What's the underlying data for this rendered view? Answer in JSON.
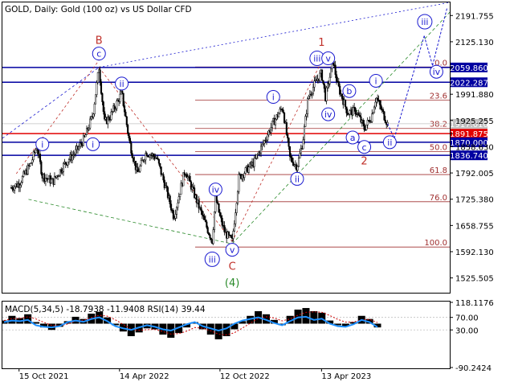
{
  "header": {
    "title": "GOLD, Daily:  Gold (100 oz) vs US Dollar CFD"
  },
  "colors": {
    "background": "#ffffff",
    "axis": "#000000",
    "grid": "#c0c0c0",
    "candle": "#000000",
    "blue_level": "#0000a0",
    "red_level": "#e00000",
    "fib_line": "#a03030",
    "wave_blue": "#1a1ad0",
    "wave_red": "#c0302a",
    "wave_green": "#2a8a2a",
    "macd_hist": "#000000",
    "macd_signal": "#d00000",
    "rsi_line": "#1e90ff",
    "current_label_bg": "#c0c0c0"
  },
  "chart_data": [
    {
      "type": "candlestick",
      "symbol": "GOLD",
      "timeframe": "Daily",
      "y_ticks": [
        "2191.755",
        "2125.130",
        "2059.860",
        "1991.880",
        "1925.255",
        "1891.875",
        "1858.630",
        "1792.005",
        "1725.380",
        "1658.755",
        "1592.130",
        "1525.505"
      ],
      "y_range": [
        1490,
        2225
      ],
      "x_ticks": [
        "15 Oct 2021",
        "14 Apr 2022",
        "12 Oct 2022",
        "13 Apr 2023"
      ],
      "price_path": [
        {
          "date": "2021-10-01",
          "price": 1755
        },
        {
          "date": "2021-10-15",
          "price": 1765
        },
        {
          "date": "2021-11-05",
          "price": 1815
        },
        {
          "date": "2021-11-16",
          "price": 1860
        },
        {
          "date": "2021-11-26",
          "price": 1785
        },
        {
          "date": "2021-12-15",
          "price": 1770
        },
        {
          "date": "2022-01-05",
          "price": 1815
        },
        {
          "date": "2022-01-25",
          "price": 1845
        },
        {
          "date": "2022-02-10",
          "price": 1880
        },
        {
          "date": "2022-02-25",
          "price": 1940
        },
        {
          "date": "2022-03-08",
          "price": 2060
        },
        {
          "date": "2022-03-18",
          "price": 1920
        },
        {
          "date": "2022-03-28",
          "price": 1935
        },
        {
          "date": "2022-04-18",
          "price": 1995
        },
        {
          "date": "2022-05-02",
          "price": 1870
        },
        {
          "date": "2022-05-16",
          "price": 1790
        },
        {
          "date": "2022-06-01",
          "price": 1845
        },
        {
          "date": "2022-06-20",
          "price": 1830
        },
        {
          "date": "2022-07-05",
          "price": 1760
        },
        {
          "date": "2022-07-21",
          "price": 1680
        },
        {
          "date": "2022-08-10",
          "price": 1800
        },
        {
          "date": "2022-08-26",
          "price": 1740
        },
        {
          "date": "2022-09-15",
          "price": 1665
        },
        {
          "date": "2022-09-28",
          "price": 1620
        },
        {
          "date": "2022-10-04",
          "price": 1730
        },
        {
          "date": "2022-10-12",
          "price": 1680
        },
        {
          "date": "2022-10-21",
          "price": 1640
        },
        {
          "date": "2022-11-03",
          "price": 1618
        },
        {
          "date": "2022-11-15",
          "price": 1780
        },
        {
          "date": "2022-12-13",
          "price": 1820
        },
        {
          "date": "2023-01-16",
          "price": 1920
        },
        {
          "date": "2023-02-02",
          "price": 1960
        },
        {
          "date": "2023-02-15",
          "price": 1830
        },
        {
          "date": "2023-02-28",
          "price": 1808
        },
        {
          "date": "2023-03-10",
          "price": 1870
        },
        {
          "date": "2023-03-20",
          "price": 1985
        },
        {
          "date": "2023-04-05",
          "price": 2030
        },
        {
          "date": "2023-04-13",
          "price": 2045
        },
        {
          "date": "2023-04-20",
          "price": 1985
        },
        {
          "date": "2023-05-04",
          "price": 2075
        },
        {
          "date": "2023-05-12",
          "price": 2015
        },
        {
          "date": "2023-05-30",
          "price": 1945
        },
        {
          "date": "2023-06-14",
          "price": 1950
        },
        {
          "date": "2023-06-29",
          "price": 1905
        },
        {
          "date": "2023-07-12",
          "price": 1935
        },
        {
          "date": "2023-07-20",
          "price": 1985
        },
        {
          "date": "2023-08-01",
          "price": 1945
        },
        {
          "date": "2023-08-10",
          "price": 1917
        }
      ],
      "current_price": "1917.010",
      "horizontal_levels": [
        {
          "label": "2059.860",
          "price": 2059.86,
          "color": "blue"
        },
        {
          "label": "2022.287",
          "price": 2022.287,
          "color": "blue"
        },
        {
          "label": "1891.875",
          "price": 1891.875,
          "color": "red"
        },
        {
          "label": "1870.000",
          "price": 1870.0,
          "color": "blue"
        },
        {
          "label": "1836.740",
          "price": 1836.74,
          "color": "blue"
        }
      ],
      "fib_levels": [
        {
          "label": "0.0",
          "price": 2061
        },
        {
          "label": "23.6",
          "price": 1977
        },
        {
          "label": "38.2",
          "price": 1905
        },
        {
          "label": "50.0",
          "price": 1846
        },
        {
          "label": "61.8",
          "price": 1788
        },
        {
          "label": "76.0",
          "price": 1719
        },
        {
          "label": "100.0",
          "price": 1604
        }
      ],
      "wave_labels": [
        {
          "text": "B",
          "style": "plain-red",
          "date": "2022-03-08",
          "price": 2130
        },
        {
          "text": "c",
          "style": "circle-blue",
          "date": "2022-03-08",
          "price": 2095
        },
        {
          "text": "ii",
          "style": "circle-blue",
          "date": "2022-04-18",
          "price": 2019
        },
        {
          "text": "i",
          "style": "circle-blue",
          "date": "2021-11-26",
          "price": 1865
        },
        {
          "text": "i",
          "style": "circle-blue",
          "date": "2022-02-25",
          "price": 1865
        },
        {
          "text": "iv",
          "style": "circle-blue",
          "date": "2022-10-04",
          "price": 1750
        },
        {
          "text": "iii",
          "style": "circle-blue",
          "date": "2022-09-28",
          "price": 1573
        },
        {
          "text": "v",
          "style": "circle-blue",
          "date": "2022-11-03",
          "price": 1597
        },
        {
          "text": "C",
          "style": "plain-red",
          "date": "2022-11-03",
          "price": 1556
        },
        {
          "text": "(4)",
          "style": "plain-green",
          "date": "2022-11-03",
          "price": 1515
        },
        {
          "text": "i",
          "style": "circle-blue",
          "date": "2023-01-16",
          "price": 1985
        },
        {
          "text": "ii",
          "style": "circle-blue",
          "date": "2023-02-28",
          "price": 1777
        },
        {
          "text": "1",
          "style": "plain-red",
          "date": "2023-04-13",
          "price": 2125
        },
        {
          "text": "iii",
          "style": "circle-blue",
          "date": "2023-04-05",
          "price": 2083
        },
        {
          "text": "v",
          "style": "circle-blue",
          "date": "2023-04-25",
          "price": 2083
        },
        {
          "text": "iv",
          "style": "circle-blue",
          "date": "2023-04-25",
          "price": 1941
        },
        {
          "text": "b",
          "style": "circle-blue",
          "date": "2023-06-02",
          "price": 2000
        },
        {
          "text": "a",
          "style": "circle-blue",
          "date": "2023-06-08",
          "price": 1882
        },
        {
          "text": "c",
          "style": "circle-blue",
          "date": "2023-06-29",
          "price": 1858
        },
        {
          "text": "2",
          "style": "plain-red",
          "date": "2023-06-29",
          "price": 1824
        },
        {
          "text": "i",
          "style": "circle-blue",
          "date": "2023-07-20",
          "price": 2026
        },
        {
          "text": "ii",
          "style": "circle-blue",
          "date": "2023-08-14",
          "price": 1870
        },
        {
          "text": "iii",
          "style": "circle-blue",
          "date": "2023-10-16",
          "price": 2176
        },
        {
          "text": "iv",
          "style": "circle-blue",
          "date": "2023-11-06",
          "price": 2049
        }
      ],
      "forecast_path": [
        {
          "date": "2023-08-10",
          "price": 1917
        },
        {
          "date": "2023-08-22",
          "price": 1880
        },
        {
          "date": "2023-10-15",
          "price": 2140
        },
        {
          "date": "2023-10-30",
          "price": 2065
        },
        {
          "date": "2023-11-25",
          "price": 2210
        }
      ]
    },
    {
      "type": "line",
      "title": "MACD(5,34,5) -18.7938 -11.9408 RSI(14) 39.44",
      "y_ticks": [
        "118.1176",
        "70.00",
        "30.00",
        "-90.2424"
      ],
      "y_range": [
        -90.2424,
        118.1176
      ],
      "series": [
        {
          "name": "MACD",
          "values": [
            10,
            25,
            18,
            30,
            5,
            -12,
            -20,
            -10,
            8,
            22,
            15,
            32,
            38,
            20,
            -5,
            -25,
            -40,
            -28,
            -15,
            -18,
            -35,
            -45,
            -30,
            -12,
            5,
            -18,
            -35,
            -50,
            -40,
            -18,
            8,
            25,
            40,
            30,
            12,
            -5,
            25,
            45,
            50,
            40,
            35,
            10,
            -5,
            -8,
            5,
            25,
            15,
            -12
          ]
        },
        {
          "name": "RSI",
          "values": [
            55,
            60,
            58,
            62,
            45,
            40,
            38,
            42,
            55,
            60,
            56,
            65,
            70,
            58,
            42,
            35,
            30,
            38,
            45,
            40,
            32,
            28,
            38,
            48,
            55,
            42,
            35,
            28,
            35,
            50,
            60,
            65,
            70,
            62,
            52,
            45,
            58,
            70,
            72,
            62,
            66,
            50,
            42,
            40,
            48,
            62,
            55,
            39
          ]
        }
      ]
    }
  ]
}
